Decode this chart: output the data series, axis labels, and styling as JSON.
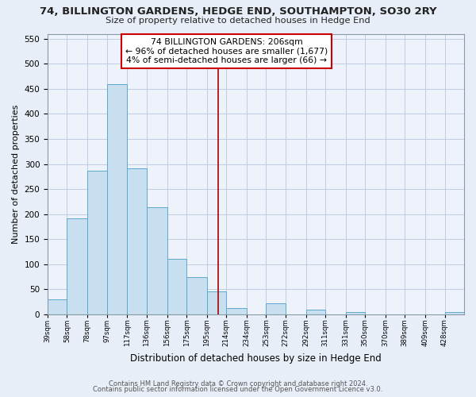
{
  "title": "74, BILLINGTON GARDENS, HEDGE END, SOUTHAMPTON, SO30 2RY",
  "subtitle": "Size of property relative to detached houses in Hedge End",
  "xlabel": "Distribution of detached houses by size in Hedge End",
  "ylabel": "Number of detached properties",
  "bin_labels": [
    "39sqm",
    "58sqm",
    "78sqm",
    "97sqm",
    "117sqm",
    "136sqm",
    "156sqm",
    "175sqm",
    "195sqm",
    "214sqm",
    "234sqm",
    "253sqm",
    "272sqm",
    "292sqm",
    "311sqm",
    "331sqm",
    "350sqm",
    "370sqm",
    "389sqm",
    "409sqm",
    "428sqm"
  ],
  "bin_edges": [
    39,
    58,
    78,
    97,
    117,
    136,
    156,
    175,
    195,
    214,
    234,
    253,
    272,
    292,
    311,
    331,
    350,
    370,
    389,
    409,
    428,
    447
  ],
  "bar_heights": [
    30,
    192,
    287,
    459,
    291,
    213,
    110,
    74,
    46,
    13,
    0,
    22,
    0,
    9,
    0,
    5,
    0,
    0,
    0,
    0,
    5
  ],
  "bar_color": "#c8dff0",
  "bar_edge_color": "#5da8d0",
  "vline_x": 206,
  "vline_color": "#aa0000",
  "ylim": [
    0,
    560
  ],
  "yticks": [
    0,
    50,
    100,
    150,
    200,
    250,
    300,
    350,
    400,
    450,
    500,
    550
  ],
  "annotation_title": "74 BILLINGTON GARDENS: 206sqm",
  "annotation_line1": "← 96% of detached houses are smaller (1,677)",
  "annotation_line2": "4% of semi-detached houses are larger (66) →",
  "footer1": "Contains HM Land Registry data © Crown copyright and database right 2024.",
  "footer2": "Contains public sector information licensed under the Open Government Licence v3.0.",
  "bg_color": "#e8eef8",
  "plot_bg_color": "#eef2fb",
  "grid_color": "#c0cce0"
}
